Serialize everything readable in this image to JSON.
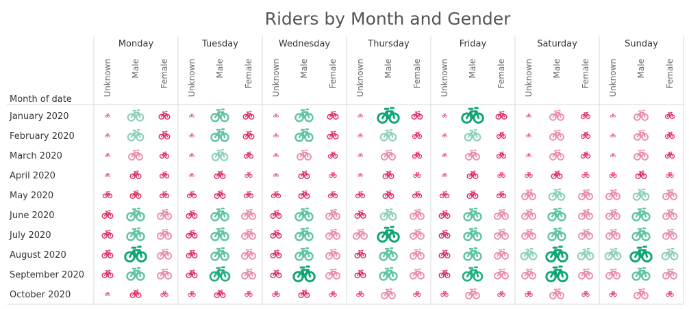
{
  "chart_data": {
    "type": "table",
    "title": "Riders by Month and Gender",
    "row_header": "Month of date",
    "columns": [
      "Monday",
      "Tuesday",
      "Wednesday",
      "Thursday",
      "Friday",
      "Saturday",
      "Sunday"
    ],
    "subcolumns": [
      "Unknown",
      "Male",
      "Female"
    ],
    "rows": [
      "January 2020",
      "February 2020",
      "March 2020",
      "April 2020",
      "May 2020",
      "June 2020",
      "July 2020",
      "August 2020",
      "September 2020",
      "October 2020"
    ],
    "mark": "bicycle-icon",
    "size_color_legend": "larger = more riders; green = most, pink = fewer",
    "values": {
      "January 2020": {
        "Monday": [
          1,
          6,
          4
        ],
        "Tuesday": [
          1,
          7,
          4
        ],
        "Wednesday": [
          1,
          7,
          4
        ],
        "Thursday": [
          1,
          9,
          4
        ],
        "Friday": [
          1,
          9,
          4
        ],
        "Saturday": [
          1,
          5,
          3
        ],
        "Sunday": [
          1,
          5,
          3
        ]
      },
      "February 2020": {
        "Monday": [
          1,
          6,
          4
        ],
        "Tuesday": [
          1,
          7,
          4
        ],
        "Wednesday": [
          1,
          7,
          4
        ],
        "Thursday": [
          1,
          6,
          3
        ],
        "Friday": [
          1,
          6,
          3
        ],
        "Saturday": [
          1,
          5,
          3
        ],
        "Sunday": [
          1,
          5,
          3
        ]
      },
      "March 2020": {
        "Monday": [
          1,
          5,
          3
        ],
        "Tuesday": [
          1,
          6,
          3
        ],
        "Wednesday": [
          1,
          5,
          3
        ],
        "Thursday": [
          1,
          5,
          3
        ],
        "Friday": [
          1,
          5,
          3
        ],
        "Saturday": [
          1,
          5,
          3
        ],
        "Sunday": [
          1,
          5,
          3
        ]
      },
      "April 2020": {
        "Monday": [
          1,
          4,
          3
        ],
        "Tuesday": [
          1,
          4,
          2
        ],
        "Wednesday": [
          1,
          4,
          2
        ],
        "Thursday": [
          1,
          4,
          2
        ],
        "Friday": [
          1,
          4,
          2
        ],
        "Saturday": [
          2,
          4,
          2
        ],
        "Sunday": [
          2,
          4,
          2
        ]
      },
      "May 2020": {
        "Monday": [
          3,
          4,
          3
        ],
        "Tuesday": [
          3,
          4,
          3
        ],
        "Wednesday": [
          3,
          4,
          3
        ],
        "Thursday": [
          3,
          4,
          3
        ],
        "Friday": [
          3,
          4,
          3
        ],
        "Saturday": [
          5,
          6,
          5
        ],
        "Sunday": [
          5,
          6,
          5
        ]
      },
      "June 2020": {
        "Monday": [
          4,
          7,
          5
        ],
        "Tuesday": [
          4,
          7,
          5
        ],
        "Wednesday": [
          4,
          7,
          5
        ],
        "Thursday": [
          4,
          6,
          5
        ],
        "Friday": [
          4,
          7,
          5
        ],
        "Saturday": [
          5,
          7,
          5
        ],
        "Sunday": [
          5,
          7,
          5
        ]
      },
      "July 2020": {
        "Monday": [
          4,
          7,
          5
        ],
        "Tuesday": [
          4,
          7,
          5
        ],
        "Wednesday": [
          4,
          7,
          5
        ],
        "Thursday": [
          5,
          9,
          5
        ],
        "Friday": [
          4,
          7,
          5
        ],
        "Saturday": [
          5,
          7,
          5
        ],
        "Sunday": [
          5,
          7,
          5
        ]
      },
      "August 2020": {
        "Monday": [
          4,
          9,
          5
        ],
        "Tuesday": [
          4,
          7,
          5
        ],
        "Wednesday": [
          4,
          7,
          5
        ],
        "Thursday": [
          4,
          7,
          5
        ],
        "Friday": [
          4,
          7,
          5
        ],
        "Saturday": [
          6,
          9,
          6
        ],
        "Sunday": [
          6,
          9,
          6
        ]
      },
      "September 2020": {
        "Monday": [
          4,
          7,
          5
        ],
        "Tuesday": [
          4,
          8,
          5
        ],
        "Wednesday": [
          4,
          9,
          5
        ],
        "Thursday": [
          4,
          7,
          5
        ],
        "Friday": [
          4,
          8,
          5
        ],
        "Saturday": [
          5,
          9,
          5
        ],
        "Sunday": [
          5,
          7,
          5
        ]
      },
      "October 2020": {
        "Monday": [
          1,
          4,
          2
        ],
        "Tuesday": [
          2,
          4,
          2
        ],
        "Wednesday": [
          2,
          4,
          2
        ],
        "Thursday": [
          2,
          5,
          2
        ],
        "Friday": [
          2,
          5,
          2
        ],
        "Saturday": [
          2,
          5,
          2
        ],
        "Sunday": [
          2,
          5,
          2
        ]
      }
    },
    "color_scale": [
      {
        "level": 1,
        "color": "#e84c78"
      },
      {
        "level": 2,
        "color": "#e4386a"
      },
      {
        "level": 3,
        "color": "#e0295f"
      },
      {
        "level": 4,
        "color": "#dd2a5f"
      },
      {
        "level": 5,
        "color": "#ea8fa9"
      },
      {
        "level": 6,
        "color": "#8fd1b8"
      },
      {
        "level": 7,
        "color": "#5ec4a2"
      },
      {
        "level": 8,
        "color": "#25b082"
      },
      {
        "level": 9,
        "color": "#0fa576"
      }
    ],
    "gridline_color": "#d9d9d9"
  }
}
